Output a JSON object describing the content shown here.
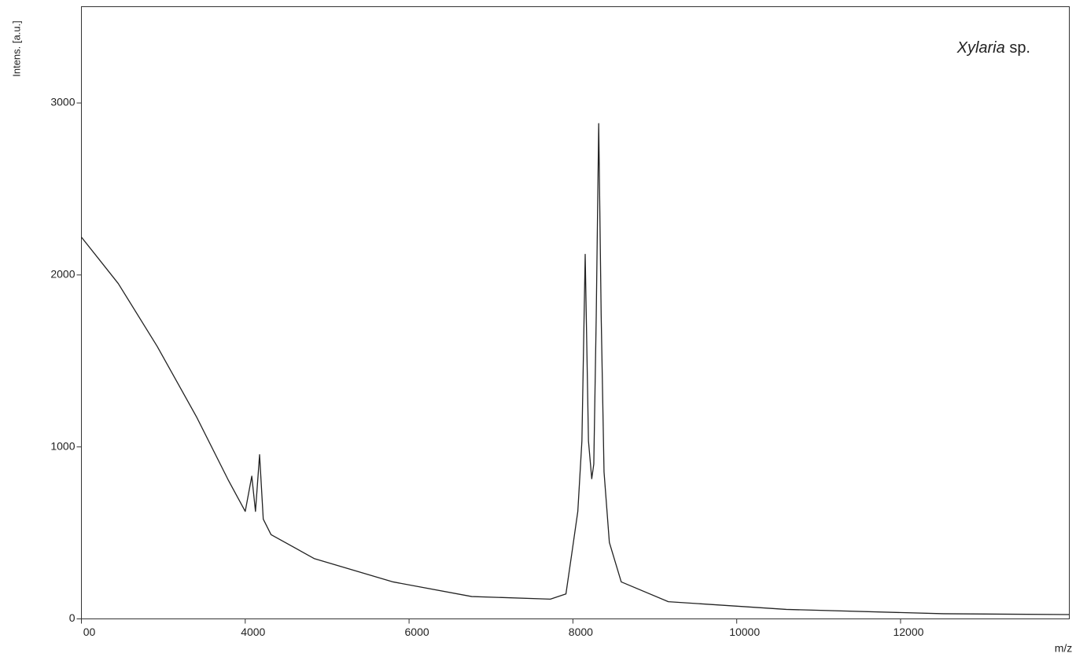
{
  "chart_data": {
    "type": "line",
    "y_label": "Intens. [a.u.]",
    "x_label": "m/z",
    "annotation": [
      "Xylaria",
      "sp."
    ],
    "x": [
      2000,
      2450,
      2925,
      3405,
      3790,
      4000,
      4080,
      4125,
      4175,
      4220,
      4315,
      4845,
      5805,
      6765,
      7725,
      7915,
      7985,
      8060,
      8110,
      8150,
      8190,
      8230,
      8255,
      8285,
      8315,
      8345,
      8380,
      8445,
      8590,
      9165,
      10605,
      12525,
      14060
    ],
    "series": [
      {
        "color": "#222222",
        "values": [
          2220,
          1950,
          1585,
          1175,
          810,
          625,
          830,
          625,
          955,
          580,
          490,
          350,
          215,
          130,
          115,
          145,
          375,
          625,
          1035,
          2120,
          1035,
          815,
          900,
          1765,
          2880,
          1765,
          855,
          445,
          215,
          100,
          55,
          30,
          25
        ]
      }
    ],
    "xlim": [
      2000,
      14060
    ],
    "ylim": [
      0,
      3560
    ],
    "xticks": [
      {
        "value": 2000,
        "label": "00"
      },
      4000,
      6000,
      8000,
      10000,
      12000
    ],
    "yticks": [
      0,
      1000,
      2000,
      3000
    ]
  }
}
